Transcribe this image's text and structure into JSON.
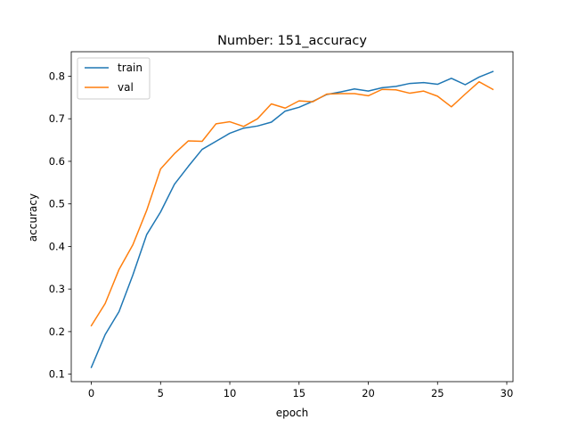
{
  "chart_data": {
    "type": "line",
    "title": "Number: 151_accuracy",
    "xlabel": "epoch",
    "ylabel": "accuracy",
    "xlim": [
      -1.45,
      30.45
    ],
    "ylim": [
      0.0825,
      0.8575
    ],
    "xticks": [
      0,
      5,
      10,
      15,
      20,
      25,
      30
    ],
    "yticks": [
      0.1,
      0.2,
      0.3,
      0.4,
      0.5,
      0.6,
      0.7,
      0.8
    ],
    "ytick_labels": [
      "0.1",
      "0.2",
      "0.3",
      "0.4",
      "0.5",
      "0.6",
      "0.7",
      "0.8"
    ],
    "legend_position": "upper-left",
    "x": [
      0,
      1,
      2,
      3,
      4,
      5,
      6,
      7,
      8,
      9,
      10,
      11,
      12,
      13,
      14,
      15,
      16,
      17,
      18,
      19,
      20,
      21,
      22,
      23,
      24,
      25,
      26,
      27,
      28,
      29
    ],
    "series": [
      {
        "name": "train",
        "color": "#1f77b4",
        "values": [
          0.116,
          0.193,
          0.247,
          0.333,
          0.428,
          0.481,
          0.546,
          0.588,
          0.628,
          0.647,
          0.666,
          0.678,
          0.683,
          0.692,
          0.718,
          0.727,
          0.741,
          0.757,
          0.763,
          0.77,
          0.765,
          0.773,
          0.776,
          0.783,
          0.785,
          0.781,
          0.795,
          0.78,
          0.798,
          0.811
        ]
      },
      {
        "name": "val",
        "color": "#ff7f0e",
        "values": [
          0.214,
          0.266,
          0.346,
          0.404,
          0.485,
          0.582,
          0.618,
          0.648,
          0.647,
          0.688,
          0.693,
          0.682,
          0.7,
          0.735,
          0.725,
          0.742,
          0.74,
          0.758,
          0.759,
          0.759,
          0.754,
          0.769,
          0.768,
          0.76,
          0.765,
          0.753,
          0.728,
          0.758,
          0.787,
          0.769
        ]
      }
    ]
  }
}
